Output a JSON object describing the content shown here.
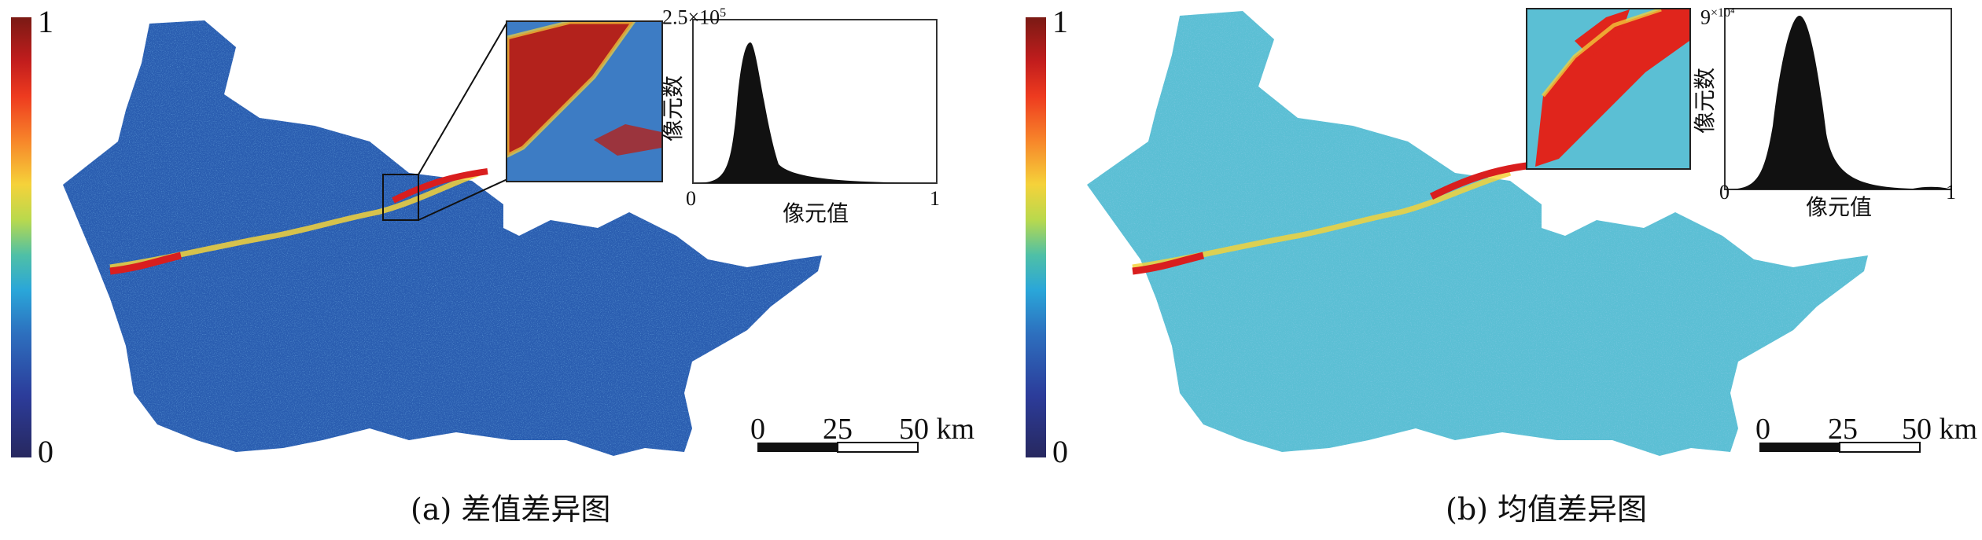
{
  "colorbar": {
    "max_label": "1",
    "min_label": "0"
  },
  "panel_a": {
    "caption": "(a) 差值差异图",
    "histogram": {
      "y_top_label": "2.5×10",
      "y_top_exp": "5",
      "x_min_label": "0",
      "x_max_label": "1",
      "xlabel": "像元值",
      "ylabel": "像元数"
    },
    "scalebar": {
      "labels": [
        "0",
        "25",
        "50 km"
      ]
    }
  },
  "panel_b": {
    "caption": "(b) 均值差异图",
    "histogram": {
      "y_top_label": "9",
      "y_top_exp": "×10⁴",
      "x_min_label": "0",
      "x_max_label": "1",
      "xlabel": "像元值",
      "ylabel": "像元数"
    },
    "scalebar": {
      "labels": [
        "0",
        "25",
        "50 km"
      ]
    }
  },
  "colors": {
    "map_a_base": "#2a5db0",
    "map_b_base": "#5bbfd4",
    "change_red": "#d91e1e",
    "change_yellow": "#f3d23b"
  }
}
